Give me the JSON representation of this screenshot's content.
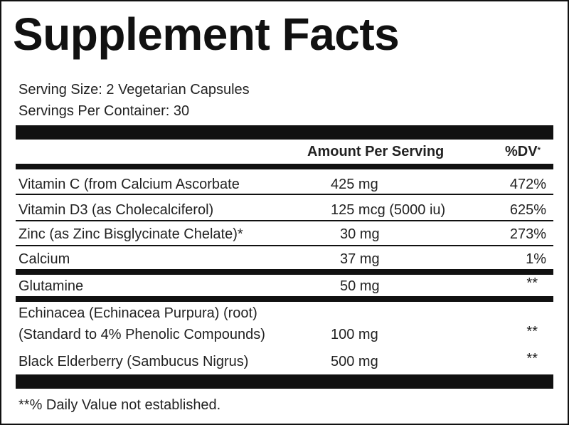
{
  "title": "Supplement Facts",
  "serving_size": "Serving Size: 2 Vegetarian Capsules",
  "servings_per_container": "Servings Per Container: 30",
  "header": {
    "amount": "Amount Per Serving",
    "dv": "%DV",
    "dv_mark": "*"
  },
  "rows": [
    {
      "name": [
        "Vitamin C (from Calcium Ascorbate"
      ],
      "amount": "425 mg",
      "dv": "472%"
    },
    {
      "name": [
        "Vitamin D3 (as Cholecalciferol)"
      ],
      "amount": "125 mcg (5000 iu)",
      "dv": "625%"
    },
    {
      "name": [
        "Zinc (as Zinc Bisglycinate Chelate)*"
      ],
      "amount": "30 mg",
      "dv": "273%"
    },
    {
      "name": [
        "Calcium"
      ],
      "amount": "37 mg",
      "dv": "1%"
    },
    {
      "name": [
        "Glutamine"
      ],
      "amount": "50 mg",
      "dv": "**"
    },
    {
      "name": [
        "Echinacea (Echinacea Purpura) (root)",
        "(Standard to 4% Phenolic Compounds)"
      ],
      "amount": "100 mg",
      "dv": "**"
    },
    {
      "name": [
        "Black Elderberry (Sambucus Nigrus)"
      ],
      "amount": "500 mg",
      "dv": "**"
    }
  ],
  "footnote": "**% Daily Value not established."
}
